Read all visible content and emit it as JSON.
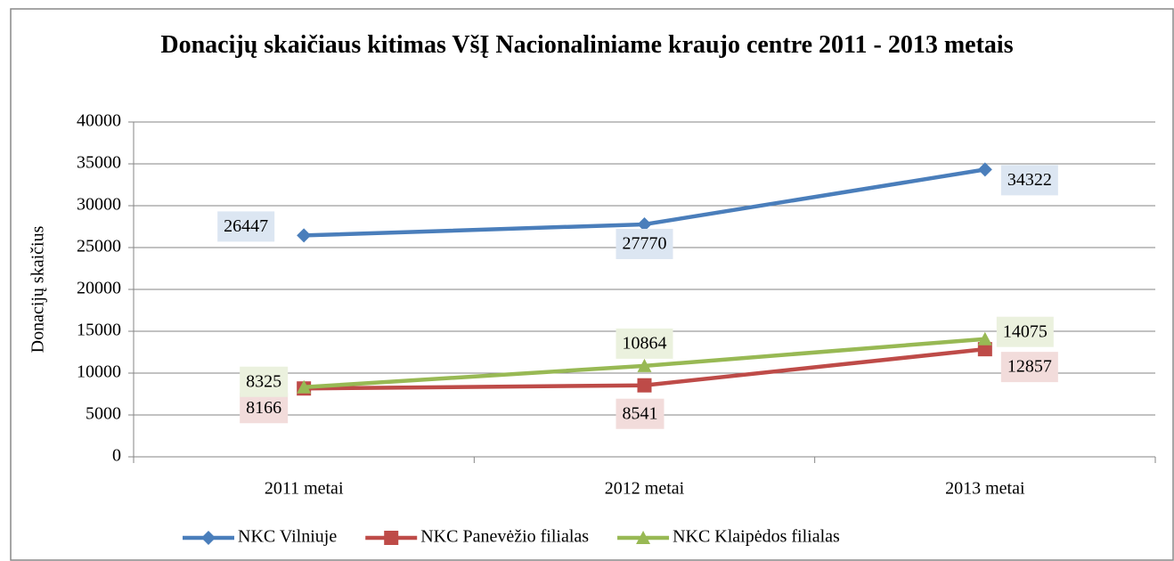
{
  "chart_data": {
    "type": "line",
    "title": "Donacijų skaičiaus kitimas VšĮ Nacionaliniame kraujo centre 2011 - 2013 metais",
    "y_label": "Donacijų skaičius",
    "categories": [
      "2011 metai",
      "2012 metai",
      "2013 metai"
    ],
    "series": [
      {
        "name": "NKC Vilniuje",
        "color": "#4a7ebb",
        "marker": "diamond",
        "label_fill": "#dce6f2",
        "values": [
          26447,
          27770,
          34322
        ]
      },
      {
        "name": "NKC Panevėžio filialas",
        "color": "#be4b48",
        "marker": "square",
        "label_fill": "#f2dcdb",
        "values": [
          8166,
          8541,
          12857
        ]
      },
      {
        "name": "NKC Klaipėdos filialas",
        "color": "#98b954",
        "marker": "triangle",
        "label_fill": "#ebf1de",
        "values": [
          8325,
          10864,
          14075
        ]
      }
    ],
    "ylim": [
      0,
      40000
    ],
    "yticks": [
      0,
      5000,
      10000,
      15000,
      20000,
      25000,
      30000,
      35000,
      40000
    ],
    "grid": true,
    "legend": "bottom"
  }
}
